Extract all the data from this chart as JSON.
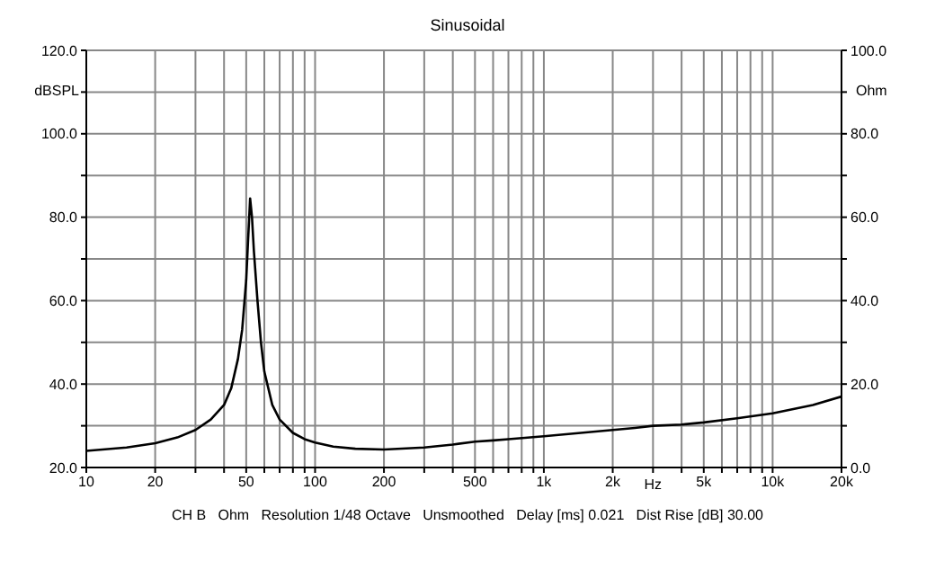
{
  "chart_data": {
    "type": "line",
    "title": "Sinusoidal",
    "xlabel": "Hz",
    "ylabel": "dBSPL",
    "y2label": "Ohm",
    "annotations": [
      "CH B   Ohm   Resolution 1/48 Octave   Unsmoothed   Delay [ms] 0.021   Dist Rise [dB] 30.00"
    ],
    "log": "x",
    "grid": true,
    "legend": false,
    "x": [
      10,
      15,
      20,
      25,
      30,
      35,
      40,
      43,
      46,
      48,
      50,
      51,
      52,
      53,
      54,
      56,
      58,
      60,
      65,
      70,
      80,
      90,
      100,
      120,
      150,
      200,
      300,
      400,
      500,
      600,
      700,
      1000,
      2000,
      2500,
      3000,
      4000,
      5000,
      7000,
      10000,
      15000,
      20000
    ],
    "series": [
      {
        "color": "#000000",
        "axis": "y2",
        "values": [
          4.0,
          4.8,
          5.8,
          7.2,
          9.0,
          11.5,
          15,
          19,
          26,
          33,
          45,
          55,
          64.5,
          60,
          52,
          40,
          30,
          23,
          15,
          11.5,
          8.3,
          6.8,
          6.0,
          5.0,
          4.5,
          4.3,
          4.8,
          5.5,
          6.2,
          6.5,
          6.8,
          7.5,
          9.0,
          9.5,
          10,
          10.3,
          10.8,
          11.8,
          13,
          15,
          17
        ]
      }
    ],
    "xlim": [
      10,
      20000
    ],
    "xticks": [
      10,
      20,
      {
        "value": 30,
        "label": null
      },
      {
        "value": 40,
        "label": null
      },
      50,
      {
        "value": 60,
        "label": null
      },
      {
        "value": 70,
        "label": null
      },
      {
        "value": 80,
        "label": null
      },
      {
        "value": 90,
        "label": null
      },
      100,
      200,
      {
        "value": 300,
        "label": null
      },
      {
        "value": 400,
        "label": null
      },
      500,
      {
        "value": 600,
        "label": null
      },
      {
        "value": 700,
        "label": null
      },
      {
        "value": 800,
        "label": null
      },
      {
        "value": 900,
        "label": null
      },
      {
        "value": 1000,
        "label": "1k"
      },
      {
        "value": 2000,
        "label": "2k"
      },
      {
        "value": 3000,
        "label": null
      },
      {
        "value": 4000,
        "label": null
      },
      {
        "value": 5000,
        "label": "5k"
      },
      {
        "value": 6000,
        "label": null
      },
      {
        "value": 7000,
        "label": null
      },
      {
        "value": 8000,
        "label": null
      },
      {
        "value": 9000,
        "label": null
      },
      {
        "value": 10000,
        "label": "10k"
      },
      {
        "value": 20000,
        "label": "20k"
      }
    ],
    "ylim": [
      20,
      120
    ],
    "yticks": [
      {
        "value": 20,
        "label": "20.0"
      },
      {
        "value": 30,
        "label": null
      },
      {
        "value": 40,
        "label": "40.0"
      },
      {
        "value": 50,
        "label": null
      },
      {
        "value": 60,
        "label": "60.0"
      },
      {
        "value": 70,
        "label": null
      },
      {
        "value": 80,
        "label": "80.0"
      },
      {
        "value": 90,
        "label": null
      },
      {
        "value": 100,
        "label": "100.0"
      },
      {
        "value": 110,
        "label": null
      },
      {
        "value": 120,
        "label": "120.0"
      }
    ],
    "y2lim": [
      0,
      100
    ],
    "y2ticks": [
      {
        "value": 0,
        "label": "0.0"
      },
      {
        "value": 10,
        "label": null
      },
      {
        "value": 20,
        "label": "20.0"
      },
      {
        "value": 30,
        "label": null
      },
      {
        "value": 40,
        "label": "40.0"
      },
      {
        "value": 50,
        "label": null
      },
      {
        "value": 60,
        "label": "60.0"
      },
      {
        "value": 70,
        "label": null
      },
      {
        "value": 80,
        "label": "80.0"
      },
      {
        "value": 90,
        "label": null
      },
      {
        "value": 100,
        "label": "100.0"
      }
    ]
  }
}
